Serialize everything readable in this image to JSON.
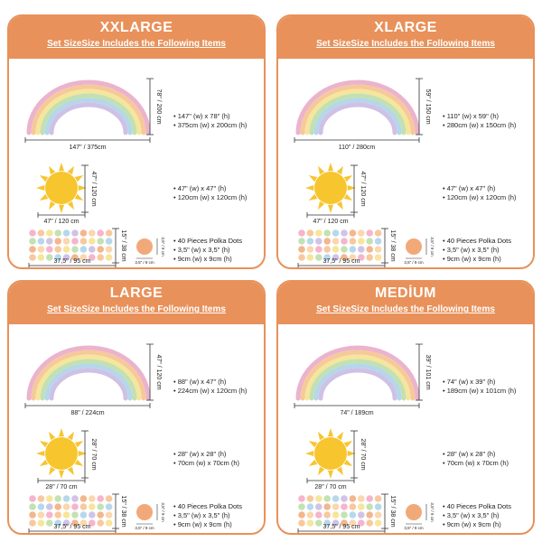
{
  "colors": {
    "accent": "#e8915a",
    "sun": "#f7c52e",
    "dot_peach": "#f2a97a"
  },
  "cards": [
    {
      "title": "XXLARGE",
      "subtitle": "Set SizeSize Includes the Following Items",
      "rainbow": {
        "height_label": "78\" / 200 cm",
        "width_label": "147\" / 375cm",
        "spec": [
          "• 147\" (w) x 78\" (h)",
          "• 375cm (w) x 200cm (h)"
        ]
      },
      "sun": {
        "height_label": "47\" / 120 cm",
        "width_label": "47\" / 120 cm",
        "spec": [
          "• 47\" (w) x 47\" (h)",
          "• 120cm (w) x 120cm (h)"
        ]
      },
      "dots": {
        "height_label": "15\" / 38 cm",
        "width_label": "37,5\" / 95 cm",
        "single_label_v": "3,5\" / 9 cm",
        "single_label_h": "3,5\" / 9 cm",
        "spec": [
          "• 40 Pieces Polka Dots",
          "• 3,5\" (w) x 3,5\" (h)",
          "• 9cm (w) x 9cm (h)"
        ]
      }
    },
    {
      "title": "XLARGE",
      "subtitle": "Set SizeSize Includes the Following Items",
      "rainbow": {
        "height_label": "59\" / 150 cm",
        "width_label": "110\" / 280cm",
        "spec": [
          "• 110\" (w) x 59\" (h)",
          "• 280cm (w) x 150cm (h)"
        ]
      },
      "sun": {
        "height_label": "47\" / 120 cm",
        "width_label": "47\" / 120 cm",
        "spec": [
          "• 47\" (w) x 47\" (h)",
          "• 120cm (w) x 120cm (h)"
        ]
      },
      "dots": {
        "height_label": "15\" / 38 cm",
        "width_label": "37,5\" / 95 cm",
        "single_label_v": "3,5\" / 9 cm",
        "single_label_h": "3,5\" / 9 cm",
        "spec": [
          "• 40 Pieces Polka Dots",
          "• 3,5\" (w) x 3,5\" (h)",
          "• 9cm (w) x 9cm (h)"
        ]
      }
    },
    {
      "title": "LARGE",
      "subtitle": "Set SizeSize Includes the Following Items",
      "rainbow": {
        "height_label": "47\" / 120 cm",
        "width_label": "88\" / 224cm",
        "spec": [
          "• 88\" (w) x 47\" (h)",
          "• 224cm (w) x 120cm (h)"
        ]
      },
      "sun": {
        "height_label": "28\" / 70 cm",
        "width_label": "28\" / 70 cm",
        "spec": [
          "• 28\" (w) x 28\" (h)",
          "• 70cm (w) x 70cm (h)"
        ]
      },
      "dots": {
        "height_label": "15\" / 38 cm",
        "width_label": "37,5\" / 95 cm",
        "single_label_v": "3,5\" / 9 cm",
        "single_label_h": "3,5\" / 9 cm",
        "spec": [
          "• 40 Pieces Polka Dots",
          "• 3,5\" (w) x 3,5\" (h)",
          "• 9cm (w) x 9cm (h)"
        ]
      }
    },
    {
      "title": "MEDİUM",
      "subtitle": "Set SizeSize Includes the Following Items",
      "rainbow": {
        "height_label": "39\" / 101 cm",
        "width_label": "74\" / 189cm",
        "spec": [
          "• 74\" (w) x 39\" (h)",
          "• 189cm (w) x 101cm (h)"
        ]
      },
      "sun": {
        "height_label": "28\" / 70 cm",
        "width_label": "28\" / 70 cm",
        "spec": [
          "• 28\" (w) x 28\" (h)",
          "• 70cm (w) x 70cm (h)"
        ]
      },
      "dots": {
        "height_label": "15\" / 38 cm",
        "width_label": "37,5\" / 95 cm",
        "single_label_v": "3,5\" / 9 cm",
        "single_label_h": "3,5\" / 9 cm",
        "spec": [
          "• 40 Pieces Polka Dots",
          "• 3,5\" (w) x 3,5\" (h)",
          "• 9cm (w) x 9cm (h)"
        ]
      }
    }
  ]
}
